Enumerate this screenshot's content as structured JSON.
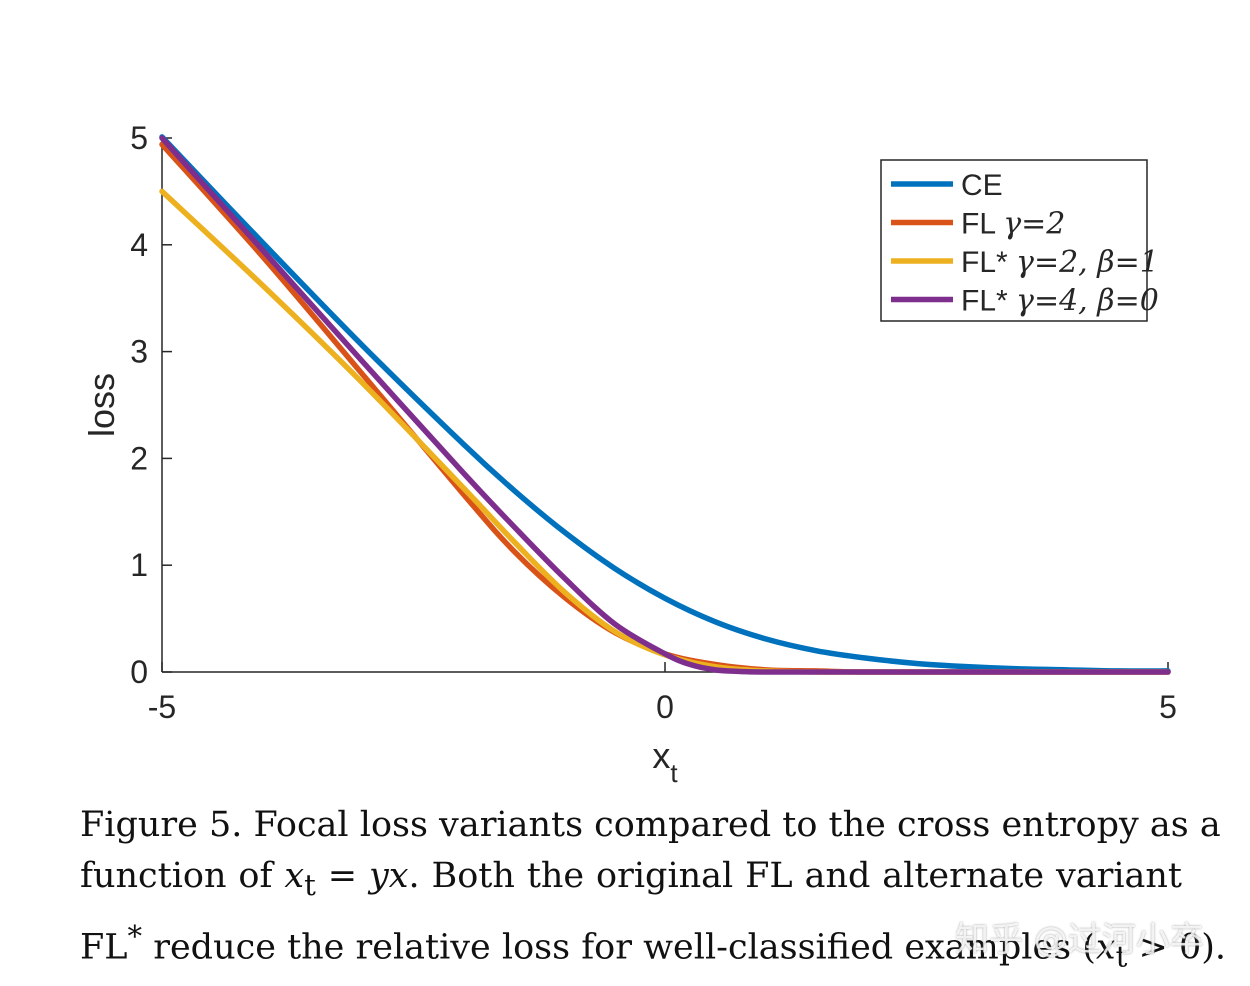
{
  "chart_data": {
    "type": "line",
    "title": "",
    "xlabel": "x",
    "xlabel_subscript": "t",
    "ylabel": "loss",
    "xlim": [
      -5,
      5
    ],
    "ylim": [
      0,
      5
    ],
    "xticks": [
      "-5",
      "0",
      "5"
    ],
    "yticks": [
      "0",
      "1",
      "2",
      "3",
      "4",
      "5"
    ],
    "grid": false,
    "legend_position": "top-right",
    "series": [
      {
        "name": "CE",
        "color": "#0072BD",
        "x": [
          -5,
          -4,
          -3,
          -2,
          -1.5,
          -1,
          -0.5,
          0,
          0.5,
          1,
          1.5,
          2,
          2.5,
          3,
          3.5,
          4,
          4.5,
          5
        ],
        "values": [
          5.01,
          4.02,
          3.05,
          2.13,
          1.7,
          1.31,
          0.97,
          0.69,
          0.47,
          0.31,
          0.2,
          0.13,
          0.08,
          0.05,
          0.03,
          0.02,
          0.01,
          0.01
        ]
      },
      {
        "name": "FL γ=2",
        "color": "#D95319",
        "x": [
          -5,
          -4,
          -3,
          -2,
          -1.5,
          -1,
          -0.5,
          0,
          0.5,
          1,
          1.5,
          2,
          3,
          4,
          5
        ],
        "values": [
          4.94,
          3.89,
          2.78,
          1.66,
          1.13,
          0.7,
          0.37,
          0.17,
          0.07,
          0.02,
          0.01,
          0.0,
          0.0,
          0.0,
          0.0
        ]
      },
      {
        "name": "FL* γ=2, β=1",
        "color": "#EDB120",
        "x": [
          -5,
          -4,
          -3,
          -2,
          -1.5,
          -1,
          -0.5,
          0,
          0.5,
          1,
          1.5,
          2,
          3,
          4,
          5
        ],
        "values": [
          4.5,
          3.62,
          2.7,
          1.72,
          1.22,
          0.75,
          0.38,
          0.16,
          0.05,
          0.01,
          0.0,
          0.0,
          0.0,
          0.0,
          0.0
        ]
      },
      {
        "name": "FL* γ=4, β=0",
        "color": "#7E2F8E",
        "x": [
          -5,
          -4,
          -3,
          -2,
          -1.5,
          -1,
          -0.5,
          0,
          0.25,
          0.5,
          0.75,
          1,
          2,
          3,
          4,
          5
        ],
        "values": [
          5.0,
          3.95,
          2.9,
          1.86,
          1.36,
          0.88,
          0.45,
          0.17,
          0.07,
          0.02,
          0.005,
          0.0,
          0.0,
          0.0,
          0.0,
          0.0
        ]
      }
    ],
    "legend": [
      {
        "prefix": "CE",
        "math": ""
      },
      {
        "prefix": "FL ",
        "math": "γ=2"
      },
      {
        "prefix": "FL* ",
        "math": "γ=2, β=1"
      },
      {
        "prefix": "FL* ",
        "math": "γ=4, β=0"
      }
    ]
  },
  "caption": {
    "line1": "Figure 5. Focal loss variants compared to the cross entropy as a",
    "line2_a": "function of ",
    "line2_math": "x",
    "line2_sub": "t",
    "line2_b": " = ",
    "line2_math2": "yx",
    "line2_c": ". Both the original FL and alternate variant",
    "line3_a": "FL",
    "line3_sup": "*",
    "line3_b": " reduce the relative loss for well-classified examples (",
    "line3_math": "x",
    "line3_sub": "t",
    "line3_c": " > 0)."
  },
  "watermark": "知乎 @过河小卒"
}
